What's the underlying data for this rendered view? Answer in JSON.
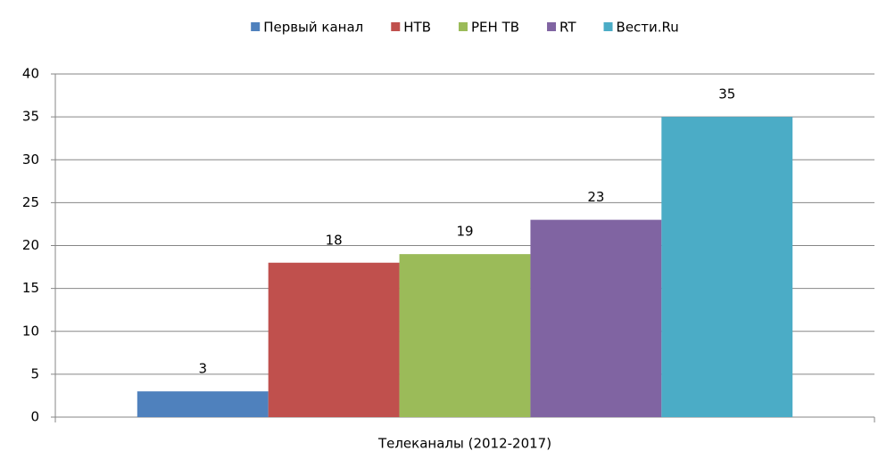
{
  "chart_data": {
    "type": "bar",
    "categories": [
      "Телеканалы (2012-2017)"
    ],
    "series": [
      {
        "name": "Первый канал",
        "color": "#4f81bd",
        "values": [
          3
        ]
      },
      {
        "name": "НТВ",
        "color": "#c0504d",
        "values": [
          18
        ]
      },
      {
        "name": "РЕН ТВ",
        "color": "#9bbb59",
        "values": [
          19
        ]
      },
      {
        "name": "RT",
        "color": "#8064a2",
        "values": [
          23
        ]
      },
      {
        "name": "Вести.Ru",
        "color": "#4bacc6",
        "values": [
          35
        ]
      }
    ],
    "ylim": [
      0,
      40
    ],
    "yticks": [
      0,
      5,
      10,
      15,
      20,
      25,
      30,
      35,
      40
    ],
    "grid": true,
    "legend": "top"
  }
}
